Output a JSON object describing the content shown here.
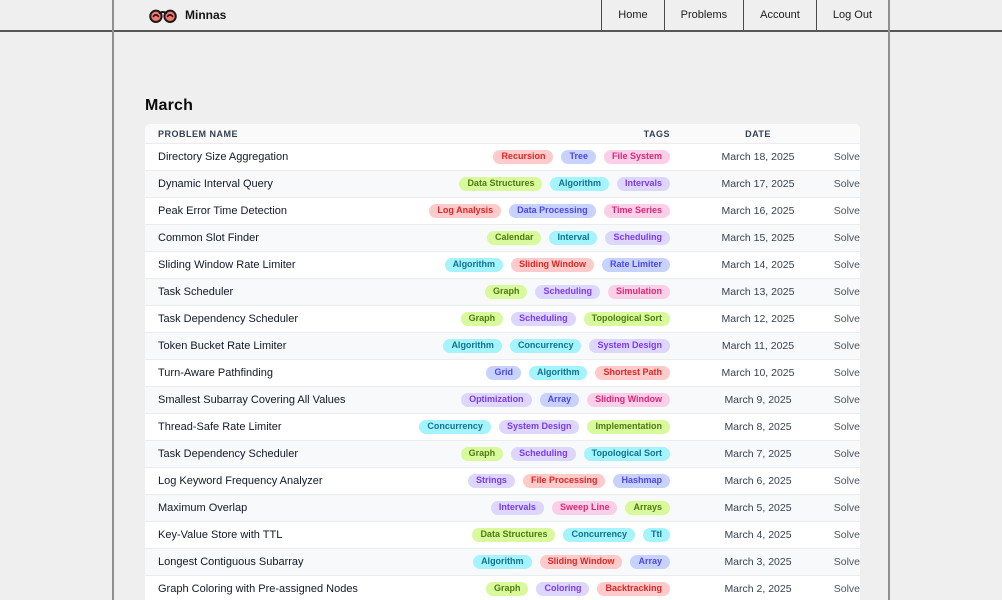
{
  "brand": {
    "name": "Minnas"
  },
  "nav": {
    "items": [
      "Home",
      "Problems",
      "Account",
      "Log Out"
    ]
  },
  "page": {
    "heading": "March"
  },
  "colors": {
    "logo_lens": "#f8766d",
    "logo_rim": "#1a1a1a",
    "tag_palette": {
      "lime": {
        "bg": "#d9f99d",
        "fg": "#4d7c0f"
      },
      "cyan": {
        "bg": "#a5f3fc",
        "fg": "#0e7490"
      },
      "violet": {
        "bg": "#ddd6fe",
        "fg": "#7c3aed"
      },
      "red": {
        "bg": "#fecaca",
        "fg": "#dc2626"
      },
      "pink": {
        "bg": "#fbcfe8",
        "fg": "#db2777"
      },
      "indigo": {
        "bg": "#c7d2fe",
        "fg": "#4f46e5"
      }
    }
  },
  "table": {
    "headers": [
      "Problem Name",
      "Tags",
      "Date"
    ],
    "solve_label": "Solve",
    "rows": [
      {
        "name": "Directory Size Aggregation",
        "date": "March 18, 2025",
        "tags": [
          {
            "label": "Recursion",
            "color": "red"
          },
          {
            "label": "Tree",
            "color": "indigo"
          },
          {
            "label": "File System",
            "color": "pink"
          }
        ]
      },
      {
        "name": "Dynamic Interval Query",
        "date": "March 17, 2025",
        "tags": [
          {
            "label": "Data Structures",
            "color": "lime"
          },
          {
            "label": "Algorithm",
            "color": "cyan"
          },
          {
            "label": "Intervals",
            "color": "violet"
          }
        ]
      },
      {
        "name": "Peak Error Time Detection",
        "date": "March 16, 2025",
        "tags": [
          {
            "label": "Log Analysis",
            "color": "red"
          },
          {
            "label": "Data Processing",
            "color": "indigo"
          },
          {
            "label": "Time Series",
            "color": "pink"
          }
        ]
      },
      {
        "name": "Common Slot Finder",
        "date": "March 15, 2025",
        "tags": [
          {
            "label": "Calendar",
            "color": "lime"
          },
          {
            "label": "Interval",
            "color": "cyan"
          },
          {
            "label": "Scheduling",
            "color": "violet"
          }
        ]
      },
      {
        "name": "Sliding Window Rate Limiter",
        "date": "March 14, 2025",
        "tags": [
          {
            "label": "Algorithm",
            "color": "cyan"
          },
          {
            "label": "Sliding Window",
            "color": "red"
          },
          {
            "label": "Rate Limiter",
            "color": "indigo"
          }
        ]
      },
      {
        "name": "Task Scheduler",
        "date": "March 13, 2025",
        "tags": [
          {
            "label": "Graph",
            "color": "lime"
          },
          {
            "label": "Scheduling",
            "color": "violet"
          },
          {
            "label": "Simulation",
            "color": "pink"
          }
        ]
      },
      {
        "name": "Task Dependency Scheduler",
        "date": "March 12, 2025",
        "tags": [
          {
            "label": "Graph",
            "color": "lime"
          },
          {
            "label": "Scheduling",
            "color": "violet"
          },
          {
            "label": "Topological Sort",
            "color": "lime"
          }
        ]
      },
      {
        "name": "Token Bucket Rate Limiter",
        "date": "March 11, 2025",
        "tags": [
          {
            "label": "Algorithm",
            "color": "cyan"
          },
          {
            "label": "Concurrency",
            "color": "cyan"
          },
          {
            "label": "System Design",
            "color": "violet"
          }
        ]
      },
      {
        "name": "Turn-Aware Pathfinding",
        "date": "March 10, 2025",
        "tags": [
          {
            "label": "Grid",
            "color": "indigo"
          },
          {
            "label": "Algorithm",
            "color": "cyan"
          },
          {
            "label": "Shortest Path",
            "color": "red"
          }
        ]
      },
      {
        "name": "Smallest Subarray Covering All Values",
        "date": "March 9, 2025",
        "tags": [
          {
            "label": "Optimization",
            "color": "violet"
          },
          {
            "label": "Array",
            "color": "indigo"
          },
          {
            "label": "Sliding Window",
            "color": "pink"
          }
        ]
      },
      {
        "name": "Thread-Safe Rate Limiter",
        "date": "March 8, 2025",
        "tags": [
          {
            "label": "Concurrency",
            "color": "cyan"
          },
          {
            "label": "System Design",
            "color": "violet"
          },
          {
            "label": "Implementation",
            "color": "lime"
          }
        ]
      },
      {
        "name": "Task Dependency Scheduler",
        "date": "March 7, 2025",
        "tags": [
          {
            "label": "Graph",
            "color": "lime"
          },
          {
            "label": "Scheduling",
            "color": "violet"
          },
          {
            "label": "Topological Sort",
            "color": "cyan"
          }
        ]
      },
      {
        "name": "Log Keyword Frequency Analyzer",
        "date": "March 6, 2025",
        "tags": [
          {
            "label": "Strings",
            "color": "violet"
          },
          {
            "label": "File Processing",
            "color": "red"
          },
          {
            "label": "Hashmap",
            "color": "indigo"
          }
        ]
      },
      {
        "name": "Maximum Overlap",
        "date": "March 5, 2025",
        "tags": [
          {
            "label": "Intervals",
            "color": "violet"
          },
          {
            "label": "Sweep Line",
            "color": "pink"
          },
          {
            "label": "Arrays",
            "color": "lime"
          }
        ]
      },
      {
        "name": "Key-Value Store with TTL",
        "date": "March 4, 2025",
        "tags": [
          {
            "label": "Data Structures",
            "color": "lime"
          },
          {
            "label": "Concurrency",
            "color": "cyan"
          },
          {
            "label": "Ttl",
            "color": "cyan"
          }
        ]
      },
      {
        "name": "Longest Contiguous Subarray",
        "date": "March 3, 2025",
        "tags": [
          {
            "label": "Algorithm",
            "color": "cyan"
          },
          {
            "label": "Sliding Window",
            "color": "red"
          },
          {
            "label": "Array",
            "color": "indigo"
          }
        ]
      },
      {
        "name": "Graph Coloring with Pre-assigned Nodes",
        "date": "March 2, 2025",
        "tags": [
          {
            "label": "Graph",
            "color": "lime"
          },
          {
            "label": "Coloring",
            "color": "violet"
          },
          {
            "label": "Backtracking",
            "color": "red"
          }
        ]
      }
    ]
  }
}
